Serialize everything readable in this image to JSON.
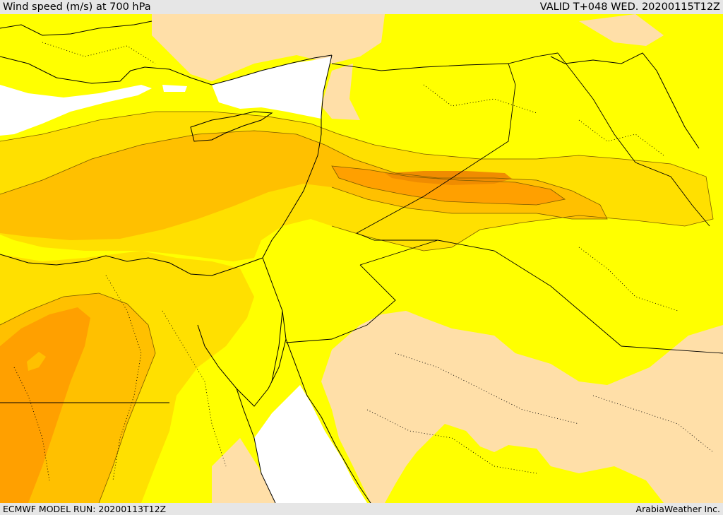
{
  "header": {
    "title": "Wind speed (m/s) at 700 hPa",
    "valid": "VALID T+048 WED. 20200115T12Z"
  },
  "footer": {
    "model_run": "ECMWF MODEL RUN: 20200113T12Z",
    "credit": "ArabiaWeather Inc."
  },
  "colors": {
    "sea": "#ffffff",
    "background_band": "#ffff00",
    "band_light": "#ffe000",
    "band_medium": "#ffc000",
    "band_strong": "#ffa000",
    "band_strongest": "#f08c00",
    "land_calm": "#ffdfa8",
    "border": "#000000",
    "contour": "#7a5a00"
  }
}
